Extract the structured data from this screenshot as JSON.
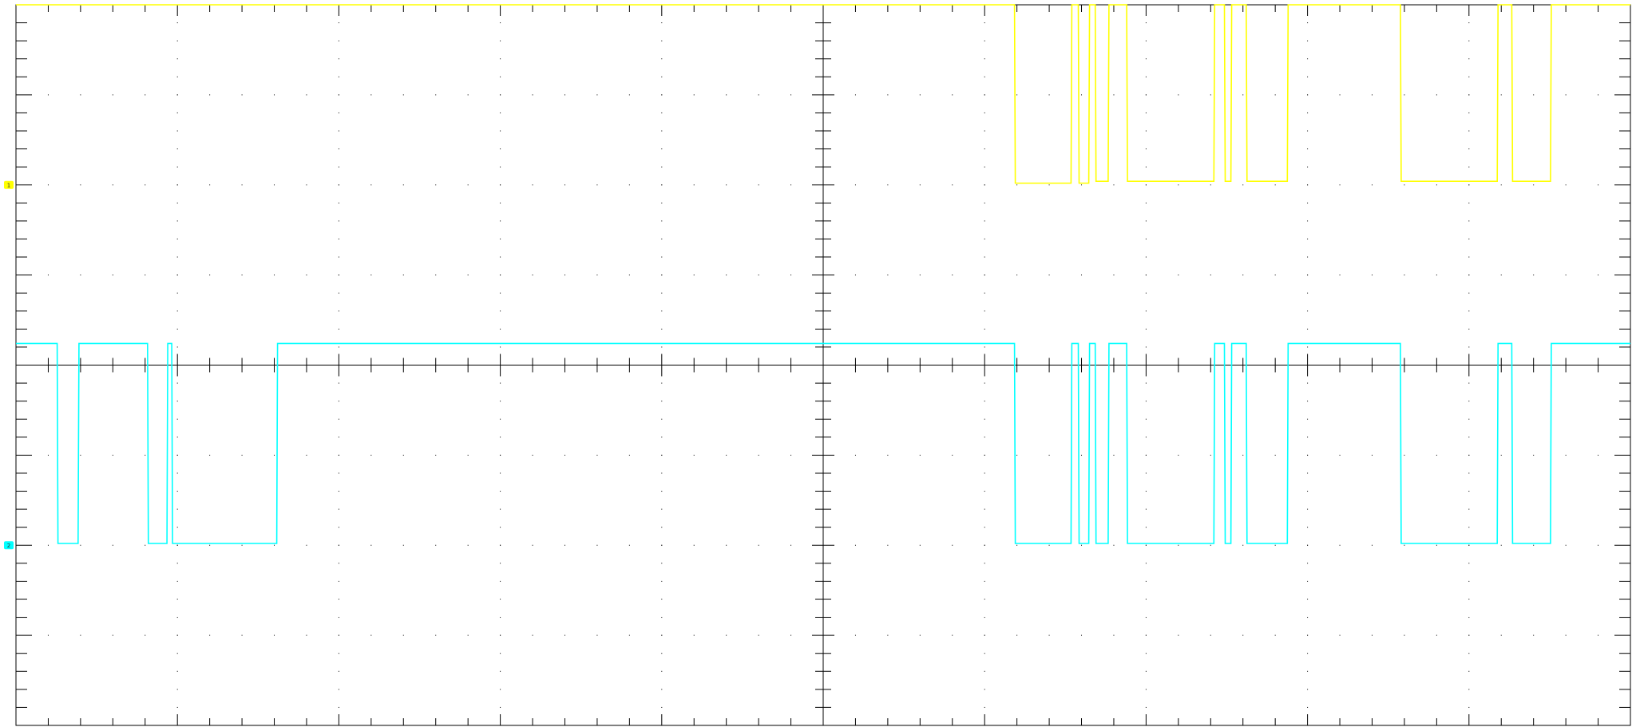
{
  "chart_data": {
    "type": "line",
    "grid": true,
    "divisions": {
      "x": 10,
      "y": 8,
      "minor_per_division": 5
    },
    "xlim": [
      0,
      10
    ],
    "ylim": [
      -4,
      4
    ],
    "colors": {
      "ch1": "#ffff00",
      "ch2": "#00ffff",
      "grid": "#000000",
      "background": "#ffffff"
    },
    "markers": [
      {
        "label": "1",
        "color": "#ffff00",
        "level": 2.0
      },
      {
        "label": "2",
        "color": "#00ffff",
        "level": -2.0
      }
    ],
    "series": [
      {
        "label": "1",
        "color": "#ffff00",
        "x": [
          0,
          6.185,
          6.19,
          6.535,
          6.54,
          6.58,
          6.585,
          6.645,
          6.65,
          6.685,
          6.69,
          6.765,
          6.77,
          6.88,
          6.885,
          7.42,
          7.425,
          7.485,
          7.49,
          7.525,
          7.53,
          7.62,
          7.625,
          7.875,
          7.88,
          8.575,
          8.58,
          9.175,
          9.18,
          9.265,
          9.27,
          9.505,
          9.51,
          10
        ],
        "y": [
          4,
          4,
          2.02,
          2.02,
          4,
          4,
          2.02,
          2.02,
          4,
          4,
          2.04,
          2.04,
          4,
          4,
          2.04,
          2.04,
          4,
          4,
          2.04,
          2.04,
          4,
          4,
          2.04,
          2.04,
          4,
          4,
          2.04,
          2.04,
          4,
          4,
          2.04,
          2.04,
          4,
          4
        ]
      },
      {
        "label": "2",
        "color": "#00ffff",
        "x": [
          0,
          0.255,
          0.26,
          0.385,
          0.39,
          0.815,
          0.82,
          0.935,
          0.94,
          0.965,
          0.97,
          1.615,
          1.62,
          6.185,
          6.19,
          6.535,
          6.54,
          6.58,
          6.585,
          6.645,
          6.65,
          6.685,
          6.69,
          6.765,
          6.77,
          6.88,
          6.885,
          7.42,
          7.425,
          7.485,
          7.49,
          7.525,
          7.53,
          7.62,
          7.625,
          7.875,
          7.88,
          8.575,
          8.58,
          9.175,
          9.18,
          9.265,
          9.27,
          9.505,
          9.51,
          10
        ],
        "y": [
          0.24,
          0.24,
          -1.98,
          -1.98,
          0.24,
          0.24,
          -1.98,
          -1.98,
          0.24,
          0.24,
          -1.98,
          -1.98,
          0.24,
          0.24,
          -1.98,
          -1.98,
          0.24,
          0.24,
          -1.98,
          -1.98,
          0.24,
          0.24,
          -1.98,
          -1.98,
          0.24,
          0.24,
          -1.98,
          -1.98,
          0.24,
          0.24,
          -1.98,
          -1.98,
          0.24,
          0.24,
          -1.98,
          -1.98,
          0.24,
          0.24,
          -1.98,
          -1.98,
          0.24,
          0.24,
          -1.98,
          -1.98,
          0.24,
          0.24
        ]
      }
    ]
  }
}
